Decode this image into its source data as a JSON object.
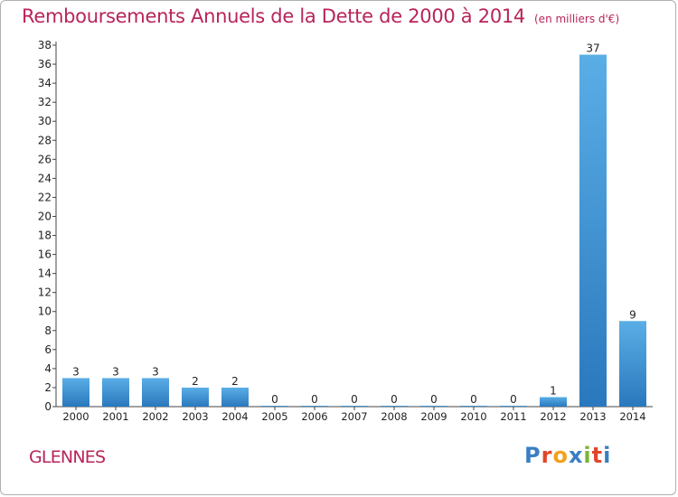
{
  "title": "Remboursements Annuels de la Dette de 2000 à 2014",
  "unit_note": "(en milliers d'€)",
  "commune": "GLENNES",
  "logo": {
    "text": "Proxiti",
    "colors": [
      "#3a7fc1",
      "#e0462b",
      "#f0a21f",
      "#3a7fc1",
      "#7bb536",
      "#e0462b",
      "#3a7fc1"
    ]
  },
  "chart_data": {
    "type": "bar",
    "categories": [
      "2000",
      "2001",
      "2002",
      "2003",
      "2004",
      "2005",
      "2006",
      "2007",
      "2008",
      "2009",
      "2010",
      "2011",
      "2012",
      "2013",
      "2014"
    ],
    "values": [
      3,
      3,
      3,
      2,
      2,
      0,
      0,
      0,
      0,
      0,
      0,
      0,
      1,
      37,
      9
    ],
    "ylim": [
      0,
      38
    ],
    "yticks": [
      0,
      2,
      4,
      6,
      8,
      10,
      12,
      14,
      16,
      18,
      20,
      22,
      24,
      26,
      28,
      30,
      32,
      34,
      36,
      38
    ],
    "bar_color_top": "#5aaee6",
    "bar_color_bottom": "#2a78bd",
    "grid": false
  }
}
